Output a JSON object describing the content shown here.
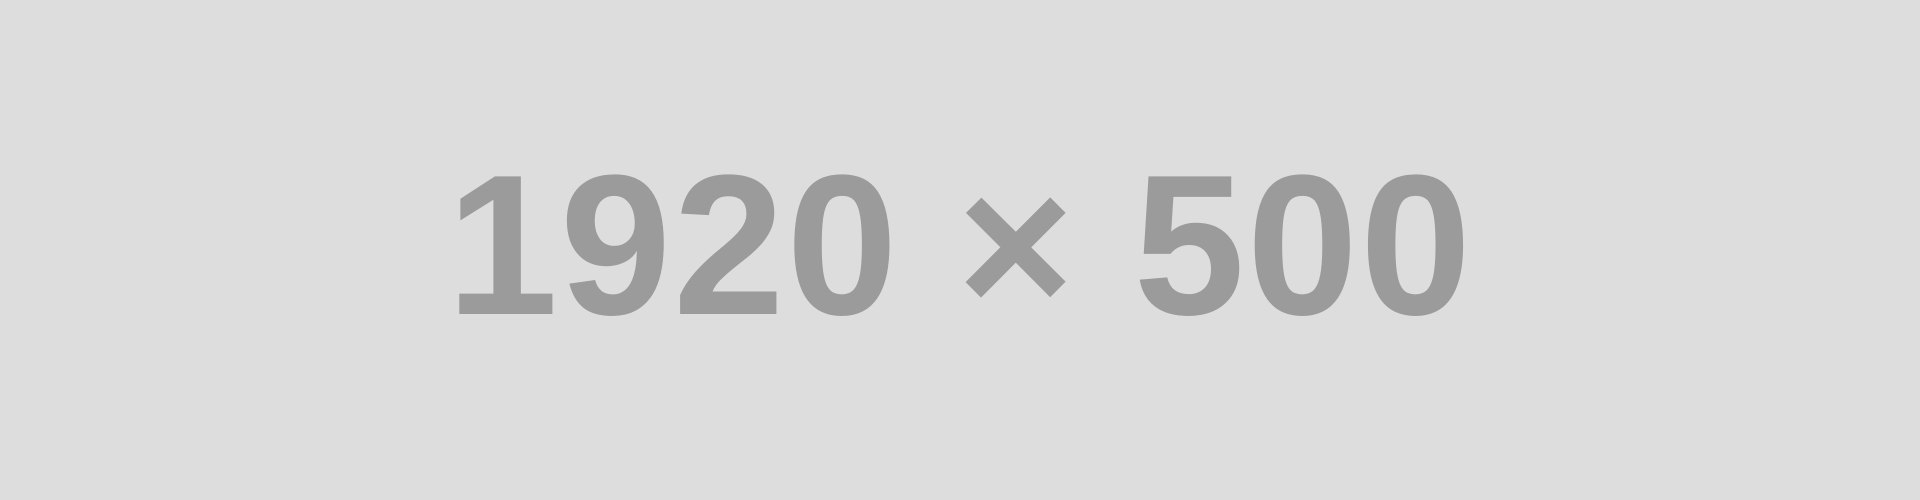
{
  "placeholder": {
    "text": "1920 × 500",
    "background_color": "#dddddd",
    "text_color": "#9b9b9b"
  }
}
